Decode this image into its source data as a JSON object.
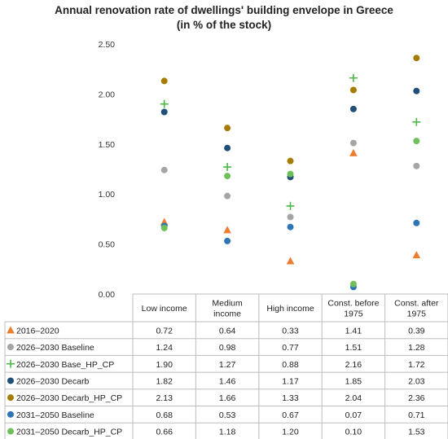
{
  "chart_data": {
    "type": "scatter",
    "title": "Annual renovation rate of dwellings' building envelope in Greece",
    "subtitle": "(in % of the stock)",
    "categories": [
      "Low income",
      "Medium income",
      "High income",
      "Const. before 1975",
      "Const. after 1975"
    ],
    "category_lines": [
      [
        "Low income"
      ],
      [
        "Medium",
        "income"
      ],
      [
        "High income"
      ],
      [
        "Const. before",
        "1975"
      ],
      [
        "Const. after",
        "1975"
      ]
    ],
    "ylim": [
      0,
      2.5
    ],
    "yticks": [
      "0.00",
      "0.50",
      "1.00",
      "1.50",
      "2.00",
      "2.50"
    ],
    "grid": false,
    "series": [
      {
        "name": "2016–2020",
        "marker": "triangle",
        "color": "#ED7D31",
        "values": [
          0.72,
          0.64,
          0.33,
          1.41,
          0.39
        ],
        "labels": [
          "0.72",
          "0.64",
          "0.33",
          "1.41",
          "0.39"
        ]
      },
      {
        "name": "2026–2030 Baseline",
        "marker": "circle",
        "color": "#A5A5A5",
        "values": [
          1.24,
          0.98,
          0.77,
          1.51,
          1.28
        ],
        "labels": [
          "1.24",
          "0.98",
          "0.77",
          "1.51",
          "1.28"
        ]
      },
      {
        "name": "2026–2030 Base_HP_CP",
        "marker": "plus",
        "color": "#4CB848",
        "values": [
          1.9,
          1.27,
          0.88,
          2.16,
          1.72
        ],
        "labels": [
          "1.90",
          "1.27",
          "0.88",
          "2.16",
          "1.72"
        ]
      },
      {
        "name": "2026–2030 Decarb",
        "marker": "circle",
        "color": "#1F4E79",
        "values": [
          1.82,
          1.46,
          1.17,
          1.85,
          2.03
        ],
        "labels": [
          "1.82",
          "1.46",
          "1.17",
          "1.85",
          "2.03"
        ]
      },
      {
        "name": "2026–2030 Decarb_HP_CP",
        "marker": "circle",
        "color": "#A67C00",
        "values": [
          2.13,
          1.66,
          1.33,
          2.04,
          2.36
        ],
        "labels": [
          "2.13",
          "1.66",
          "1.33",
          "2.04",
          "2.36"
        ]
      },
      {
        "name": "2031–2050 Baseline",
        "marker": "circle",
        "color": "#2E75B6",
        "values": [
          0.68,
          0.53,
          0.67,
          0.07,
          0.71
        ],
        "labels": [
          "0.68",
          "0.53",
          "0.67",
          "0.07",
          "0.71"
        ]
      },
      {
        "name": "2031–2050 Decarb_HP_CP",
        "marker": "circle",
        "color": "#70C05A",
        "values": [
          0.66,
          1.18,
          1.2,
          0.1,
          1.53
        ],
        "labels": [
          "0.66",
          "1.18",
          "1.20",
          "0.10",
          "1.53"
        ]
      }
    ]
  }
}
